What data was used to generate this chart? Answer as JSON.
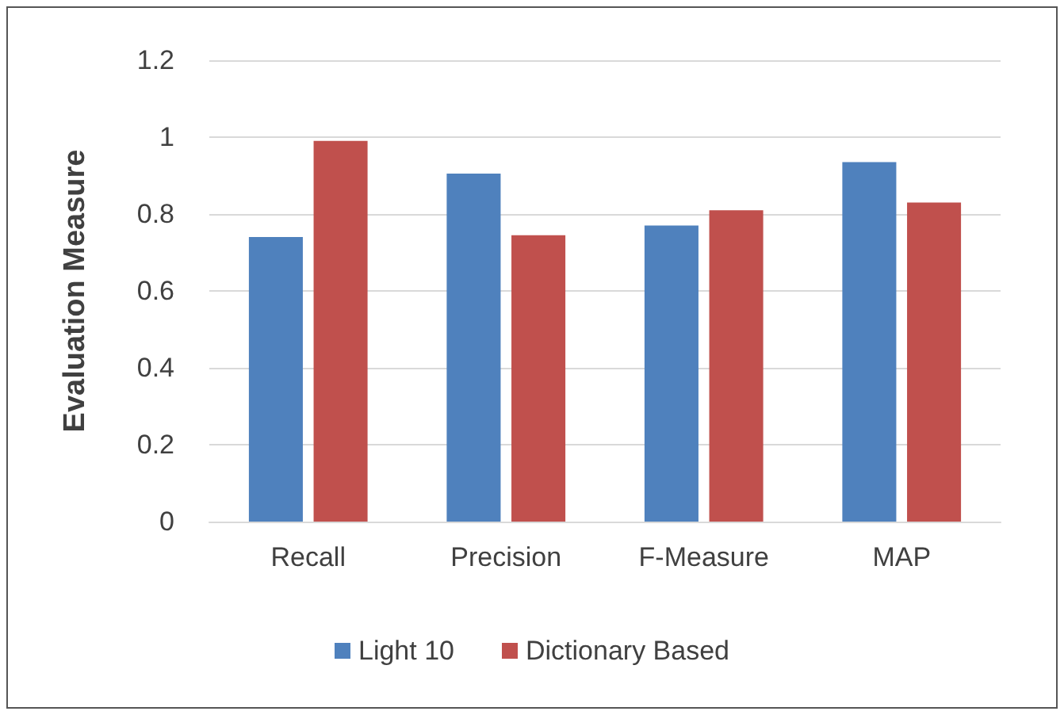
{
  "chart_data": {
    "type": "bar",
    "ylabel": "Evaluation Measure",
    "categories": [
      "Recall",
      "Precision",
      "F-Measure",
      "MAP"
    ],
    "series": [
      {
        "name": "Light 10",
        "color": "#4f81bd",
        "values": [
          0.74,
          0.905,
          0.77,
          0.935
        ]
      },
      {
        "name": "Dictionary Based",
        "color": "#c0504d",
        "values": [
          0.99,
          0.745,
          0.81,
          0.83
        ]
      }
    ],
    "ylim": [
      0,
      1.2
    ],
    "yticks": [
      0,
      0.2,
      0.4,
      0.6,
      0.8,
      1,
      1.2
    ],
    "grid": "y",
    "legend": "bottom"
  }
}
